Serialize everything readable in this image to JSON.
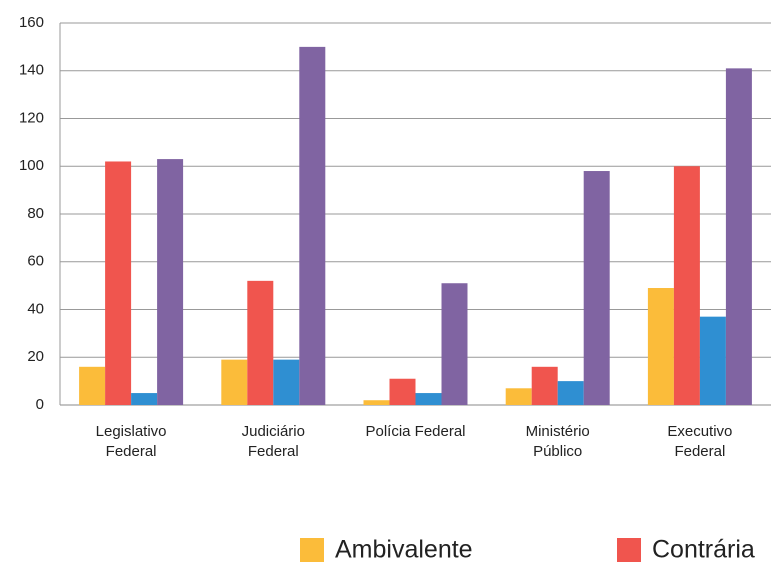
{
  "chart_data": {
    "type": "bar",
    "categories": [
      "Legislativo\nFederal",
      "Judiciário\nFederal",
      "Polícia Federal",
      "Ministério\nPúblico",
      "Executivo\nFederal"
    ],
    "series": [
      {
        "name": "Ambivalente",
        "color": "#fbbc3a",
        "values": [
          16,
          19,
          2,
          7,
          49
        ]
      },
      {
        "name": "Contrária",
        "color": "#f0554e",
        "values": [
          102,
          52,
          11,
          16,
          100
        ]
      },
      {
        "color": "#2f8fd2",
        "values": [
          5,
          19,
          5,
          10,
          37
        ]
      },
      {
        "color": "#8064a2",
        "values": [
          103,
          150,
          51,
          98,
          141
        ]
      }
    ],
    "ylim": [
      0,
      160
    ],
    "yticks": [
      0,
      20,
      40,
      60,
      80,
      100,
      120,
      140,
      160
    ],
    "grid": true
  }
}
